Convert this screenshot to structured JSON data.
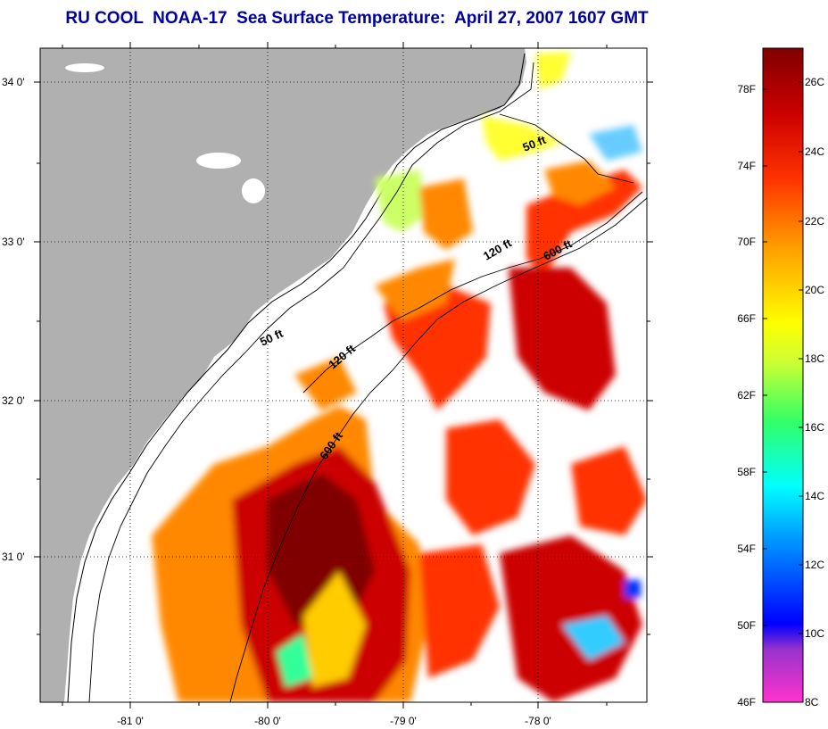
{
  "title": "RU COOL  NOAA-17  Sea Surface Temperature:  April 27, 2007 1607 GMT",
  "map": {
    "lon_range": [
      -81.75,
      -77.2
    ],
    "lat_range": [
      30.2,
      34.2
    ],
    "lat_ticks": [
      "34 0'",
      "33 0'",
      "32 0'",
      "31 0'"
    ],
    "lon_ticks": [
      "-81 0'",
      "-80 0'",
      "-79 0'",
      "-78 0'"
    ],
    "land_color": "#b0b0b0",
    "grid": "dotted",
    "contours": [
      {
        "label": "50 ft"
      },
      {
        "label": "120 ft"
      },
      {
        "label": "600 ft"
      }
    ],
    "contour_labels": [
      "50 ft",
      "50 ft",
      "120 ft",
      "120 ft",
      "600 ft",
      "600 ft"
    ]
  },
  "colorbar": {
    "range_c": [
      8,
      27
    ],
    "fahrenheit_labels": [
      "78F",
      "74F",
      "70F",
      "66F",
      "62F",
      "58F",
      "54F",
      "50F",
      "46F"
    ],
    "celsius_labels": [
      "26C",
      "24C",
      "22C",
      "20C",
      "18C",
      "16C",
      "14C",
      "12C",
      "10C",
      "8C"
    ],
    "colors": [
      "#ff33cc",
      "#9933cc",
      "#0000ff",
      "#0099ff",
      "#00ffff",
      "#33ff66",
      "#ccff33",
      "#ffff00",
      "#ff9900",
      "#ff3300",
      "#cc0000",
      "#800000"
    ]
  }
}
